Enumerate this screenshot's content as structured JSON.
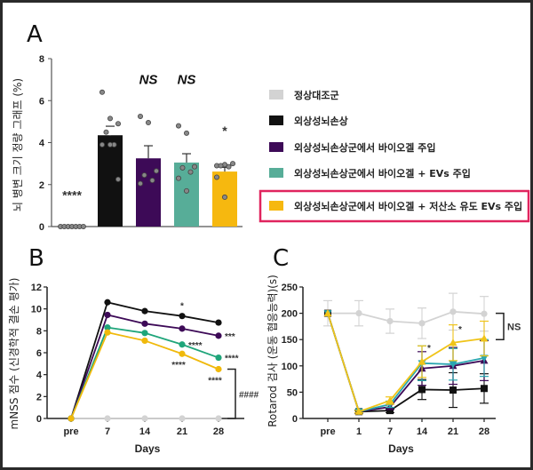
{
  "panel_labels": [
    "A",
    "B",
    "C"
  ],
  "legend": {
    "items": [
      {
        "label": "정상대조군",
        "color": "#d3d3d3"
      },
      {
        "label": "외상성뇌손상",
        "color": "#111111"
      },
      {
        "label": "외상성뇌손상군에서 바이오겔 주입",
        "color": "#3d0a57"
      },
      {
        "label": "외상성뇌손상군에서 바이오겔 + EVs 주입",
        "color": "#57ad98"
      },
      {
        "label": "외상성뇌손상군에서 바이오겔 + 저산소 유도 EVs 주입",
        "color": "#f6b80f"
      }
    ],
    "highlight_index": 4,
    "highlight_color": "#e0245e"
  },
  "chart_data": [
    {
      "type": "bar",
      "panel": "A",
      "ylabel": "뇌 병변 크기 정량 그래프 (%)",
      "ylim": [
        0,
        8
      ],
      "yticks": [
        0,
        2,
        4,
        6,
        8
      ],
      "values": [
        0,
        4.35,
        3.25,
        3.05,
        2.62
      ],
      "error": [
        0,
        0.43,
        0.6,
        0.42,
        0.2
      ],
      "colors": [
        "#d3d3d3",
        "#111111",
        "#3d0a57",
        "#57ad98",
        "#f6b80f"
      ],
      "points": [
        [
          0,
          0,
          0,
          0,
          0,
          0,
          0
        ],
        [
          6.4,
          5.15,
          4.9,
          4.5,
          3.9,
          3.9,
          3.9,
          2.25
        ],
        [
          5.25,
          4.95,
          2.65,
          2.45,
          2.2,
          2.05
        ],
        [
          4.8,
          4.45,
          2.85,
          2.8,
          2.6,
          2.3,
          1.7
        ],
        [
          2.9,
          2.95,
          3.0,
          2.9,
          2.85,
          2.35,
          1.4
        ]
      ],
      "annotations": [
        "****",
        "",
        "NS",
        "NS",
        "*"
      ]
    },
    {
      "type": "line",
      "panel": "B",
      "xlabel": "Days",
      "ylabel": "mNSS 점수 (신경학적 결손 평가)",
      "categories": [
        "pre",
        "7",
        "14",
        "21",
        "28"
      ],
      "ylim": [
        0,
        12
      ],
      "yticks": [
        0,
        2,
        4,
        6,
        8,
        10,
        12
      ],
      "series": [
        {
          "color": "#d3d3d3",
          "values": [
            0,
            0,
            0,
            0,
            0
          ]
        },
        {
          "color": "#111111",
          "values": [
            0,
            10.6,
            9.8,
            9.35,
            8.75
          ]
        },
        {
          "color": "#3d0a57",
          "values": [
            0,
            9.45,
            8.65,
            8.2,
            7.55
          ]
        },
        {
          "color": "#1fa57a",
          "values": [
            0,
            8.3,
            7.8,
            6.75,
            5.55
          ]
        },
        {
          "color": "#f0b90b",
          "values": [
            0,
            7.85,
            7.1,
            5.9,
            4.5
          ]
        }
      ],
      "annotations": [
        {
          "text": "*",
          "category": "21",
          "series": 1,
          "place": "above"
        },
        {
          "text": "***",
          "category": "28",
          "series": 2,
          "place": "right"
        },
        {
          "text": "****",
          "category": "21",
          "series": 3,
          "place": "right"
        },
        {
          "text": "****",
          "category": "28",
          "series": 3,
          "place": "right"
        },
        {
          "text": "****",
          "category": "21",
          "series": 4,
          "place": "below"
        },
        {
          "text": "****",
          "category": "28",
          "series": 4,
          "place": "below"
        }
      ],
      "bracket_label": "####"
    },
    {
      "type": "line",
      "panel": "C",
      "xlabel": "Days",
      "ylabel": "Rotarod 검사 (운동 협응능력)(s)",
      "categories": [
        "pre",
        "1",
        "7",
        "14",
        "21",
        "28"
      ],
      "ylim": [
        0,
        250
      ],
      "yticks": [
        0,
        50,
        100,
        150,
        200,
        250
      ],
      "series": [
        {
          "color": "#d3d3d3",
          "marker": "circle",
          "values": [
            200,
            200,
            185,
            181,
            203,
            199
          ],
          "error": [
            24,
            24,
            23,
            29,
            35,
            33
          ]
        },
        {
          "color": "#111111",
          "marker": "square",
          "values": [
            200,
            13,
            15,
            55,
            54,
            57
          ],
          "error": [
            0,
            3,
            4,
            19,
            33,
            28
          ]
        },
        {
          "color": "#3d0a57",
          "marker": "triangle",
          "values": [
            200,
            13,
            22,
            95,
            100,
            110
          ],
          "error": [
            0,
            2,
            5,
            32,
            35,
            38
          ]
        },
        {
          "color": "#2aa6b0",
          "marker": "triangle-down",
          "values": [
            200,
            13,
            27,
            105,
            103,
            115
          ],
          "error": [
            0,
            2,
            6,
            33,
            30,
            35
          ]
        },
        {
          "color": "#f0c419",
          "marker": "triangle",
          "values": [
            200,
            13,
            34,
            108,
            144,
            152
          ],
          "error": [
            0,
            2,
            7,
            30,
            34,
            33
          ]
        }
      ],
      "annotations": [
        {
          "text": "*",
          "category": "14",
          "series": 4
        },
        {
          "text": "*",
          "category": "21",
          "series": 4
        }
      ],
      "bracket_label": "NS"
    }
  ]
}
